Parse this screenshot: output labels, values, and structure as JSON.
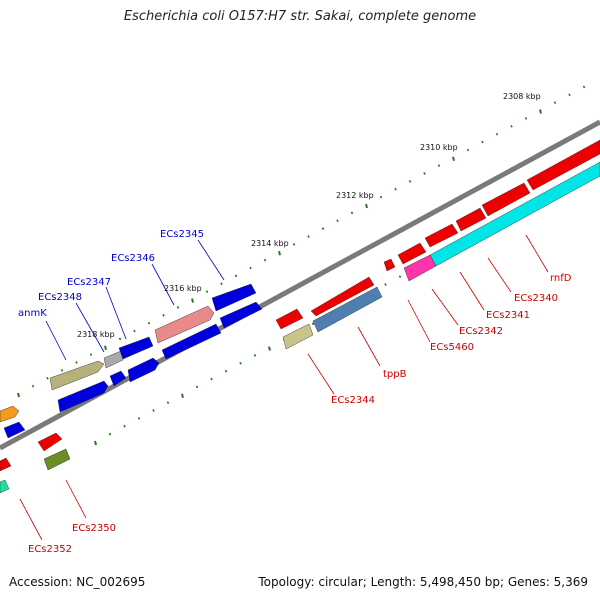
{
  "title": "Escherichia coli O157:H7 str. Sakai, complete genome",
  "footer": {
    "accession": "Accession: NC_002695",
    "summary": "Topology: circular; Length: 5,498,450 bp; Genes: 5,369"
  },
  "ruler": {
    "tick_color": "#2a7a1e",
    "labels": [
      "2308 kbp",
      "2310 kbp",
      "2312 kbp",
      "2314 kbp",
      "2316 kbp",
      "2318 kbp"
    ]
  },
  "colors": {
    "forward_label": "#0000cc",
    "reverse_label": "#cc0000"
  },
  "forward_genes": [
    {
      "name": "anmK",
      "color": "#b7b27a"
    },
    {
      "name": "ECs2348",
      "color": "#0000dd"
    },
    {
      "name": "ECs2347",
      "color": "#aaaaaa"
    },
    {
      "name": "ECs2346",
      "color": "#e98a8a"
    },
    {
      "name": "ECs2345",
      "color": "#0000dd"
    }
  ],
  "reverse_genes": [
    {
      "name": "rnfD",
      "color": "#ee0000"
    },
    {
      "name": "ECs2340",
      "color": "#ee0000"
    },
    {
      "name": "ECs2341",
      "color": "#ee0000"
    },
    {
      "name": "ECs2342",
      "color": "#ee0000"
    },
    {
      "name": "ECs5460",
      "color": "#ff33aa"
    },
    {
      "name": "tppB",
      "color": "#4f7fb0"
    },
    {
      "name": "ECs2344",
      "color": "#c9c48a"
    },
    {
      "name": "ECs2350",
      "color": "#6b8e23"
    },
    {
      "name": "ECs2352",
      "color": "#ee0000"
    }
  ],
  "other_colors": {
    "cyan_track": "#00e5e5",
    "orange": "#f59a1f",
    "teal": "#20e0a0"
  }
}
